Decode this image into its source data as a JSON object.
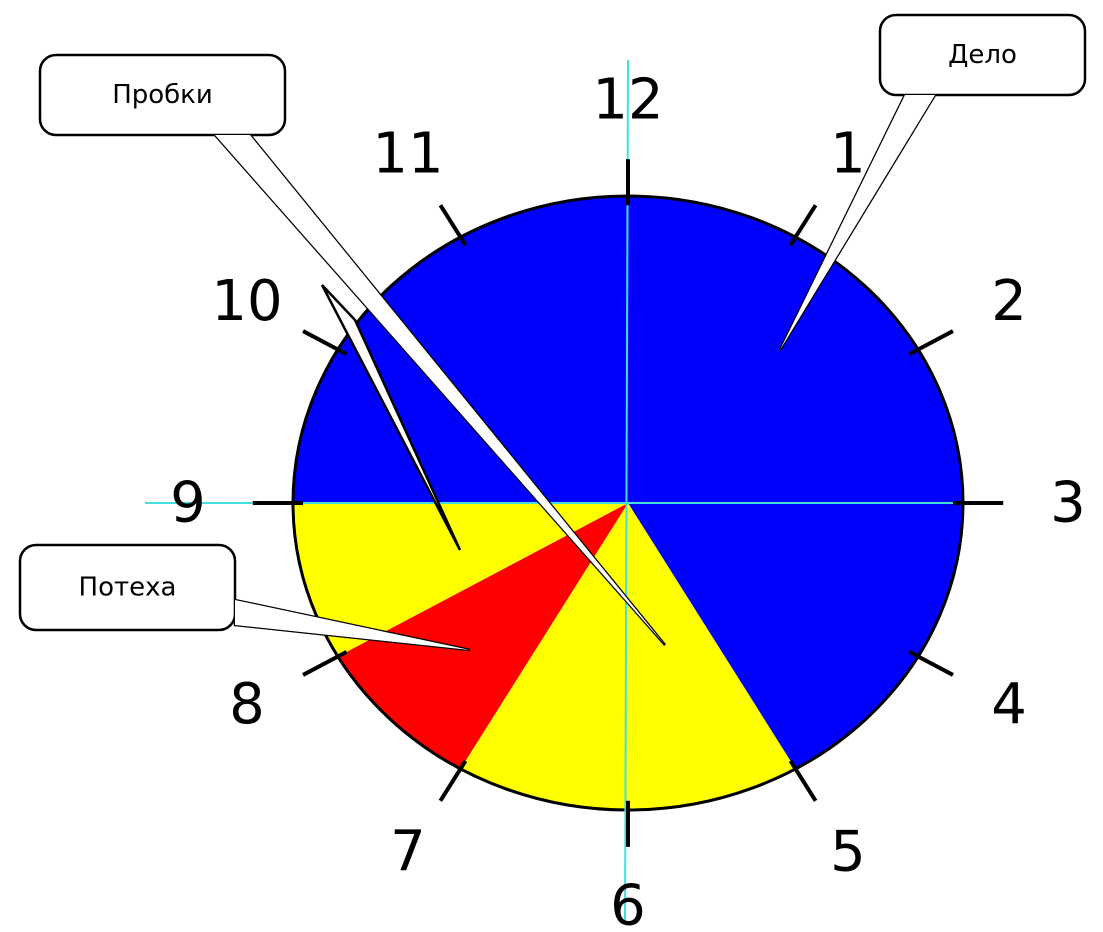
{
  "hour_labels": [
    "1",
    "2",
    "3",
    "4",
    "5",
    "6",
    "7",
    "8",
    "9",
    "10",
    "11",
    "12"
  ],
  "sectors": [
    {
      "start": 9,
      "end": 5,
      "color": "#0000ff"
    },
    {
      "start": 5,
      "end": 7,
      "color": "#ffff00"
    },
    {
      "start": 7,
      "end": 8,
      "color": "#ff0000"
    },
    {
      "start": 8,
      "end": 9,
      "color": "#ffff00"
    }
  ],
  "callouts": [
    {
      "label": "Дело"
    },
    {
      "label": "Пробки"
    },
    {
      "label": "Потеха"
    }
  ]
}
